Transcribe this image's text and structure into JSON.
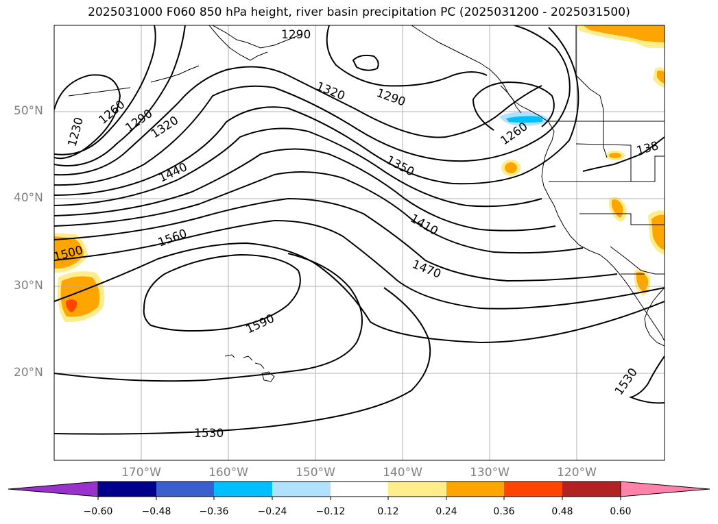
{
  "title": "2025031000 F060 850 hPa height, river basin precipitation PC (2025031200 - 2025031500)",
  "lat_labels": [
    "50°N",
    "40°N",
    "30°N",
    "20°N"
  ],
  "lon_labels": [
    "170°W",
    "160°W",
    "150°W",
    "140°W",
    "130°W",
    "120°W"
  ],
  "contour_labels": [
    "1290",
    "1320",
    "1290",
    "1260",
    "1230",
    "1260",
    "1290",
    "1320",
    "1440",
    "1350",
    "1410",
    "1560",
    "1500",
    "1470",
    "1590",
    "1530",
    "1530",
    "138"
  ],
  "colorbar": {
    "ticks": [
      "−0.60",
      "−0.48",
      "−0.36",
      "−0.24",
      "−0.12",
      "0.12",
      "0.24",
      "0.36",
      "0.48",
      "0.60"
    ],
    "colors": [
      "#9932cc",
      "#00008b",
      "#3a5fcd",
      "#00bfff",
      "#b0e2ff",
      "#ffffff",
      "#ffec8b",
      "#ffa500",
      "#ff4500",
      "#b22222",
      "#ff82ab"
    ]
  },
  "colors": {
    "contour": "#000000",
    "grid": "#b0b0b0",
    "axis_label": "#808080",
    "precip_positive": "#ffa500",
    "precip_light": "#ffec8b",
    "precip_strong": "#ff4500",
    "precip_negative": "#00bfff",
    "precip_negative_light": "#b0e2ff"
  }
}
